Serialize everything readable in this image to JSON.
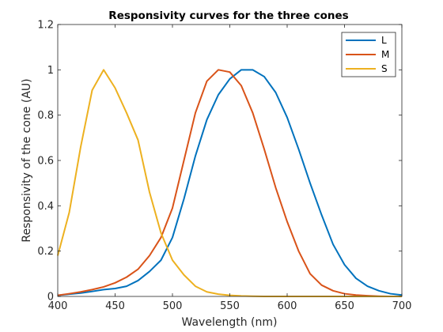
{
  "chart_data": {
    "type": "line",
    "title": "Responsivity curves for the three cones",
    "xlabel": "Wavelength (nm)",
    "ylabel": "Responsivity of the cone (AU)",
    "xlim": [
      400,
      700
    ],
    "ylim": [
      0,
      1.2
    ],
    "xticks": [
      400,
      450,
      500,
      550,
      600,
      650,
      700
    ],
    "yticks": [
      0,
      0.2,
      0.4,
      0.6,
      0.8,
      1,
      1.2
    ],
    "xtick_labels": [
      "400",
      "450",
      "500",
      "550",
      "600",
      "650",
      "700"
    ],
    "ytick_labels": [
      "0",
      "0.2",
      "0.4",
      "0.6",
      "0.8",
      "1",
      "1.2"
    ],
    "grid": false,
    "legend_position": "top-right",
    "x": [
      400,
      410,
      420,
      430,
      440,
      450,
      460,
      470,
      480,
      490,
      500,
      510,
      520,
      530,
      540,
      550,
      560,
      570,
      580,
      590,
      600,
      610,
      620,
      630,
      640,
      650,
      660,
      670,
      680,
      690,
      700
    ],
    "series": [
      {
        "name": "L",
        "color": "#0072BD",
        "values": [
          0.005,
          0.01,
          0.015,
          0.022,
          0.03,
          0.035,
          0.045,
          0.07,
          0.11,
          0.16,
          0.26,
          0.43,
          0.62,
          0.78,
          0.89,
          0.96,
          1.0,
          1.0,
          0.97,
          0.9,
          0.79,
          0.65,
          0.5,
          0.36,
          0.23,
          0.14,
          0.08,
          0.045,
          0.025,
          0.012,
          0.006
        ]
      },
      {
        "name": "M",
        "color": "#D95319",
        "values": [
          0.005,
          0.012,
          0.02,
          0.03,
          0.042,
          0.06,
          0.085,
          0.12,
          0.18,
          0.26,
          0.39,
          0.6,
          0.81,
          0.95,
          1.0,
          0.99,
          0.93,
          0.81,
          0.65,
          0.48,
          0.33,
          0.2,
          0.1,
          0.05,
          0.025,
          0.012,
          0.006,
          0.003,
          0.001,
          0.0,
          0.0
        ]
      },
      {
        "name": "S",
        "color": "#EDB120",
        "values": [
          0.18,
          0.37,
          0.66,
          0.91,
          1.0,
          0.92,
          0.81,
          0.69,
          0.46,
          0.28,
          0.16,
          0.095,
          0.045,
          0.02,
          0.01,
          0.005,
          0.002,
          0.001,
          0.0,
          0.0,
          0.0,
          0.0,
          0.0,
          0.0,
          0.0,
          0.0,
          0.0,
          0.0,
          0.0,
          0.0,
          0.0
        ]
      }
    ]
  }
}
